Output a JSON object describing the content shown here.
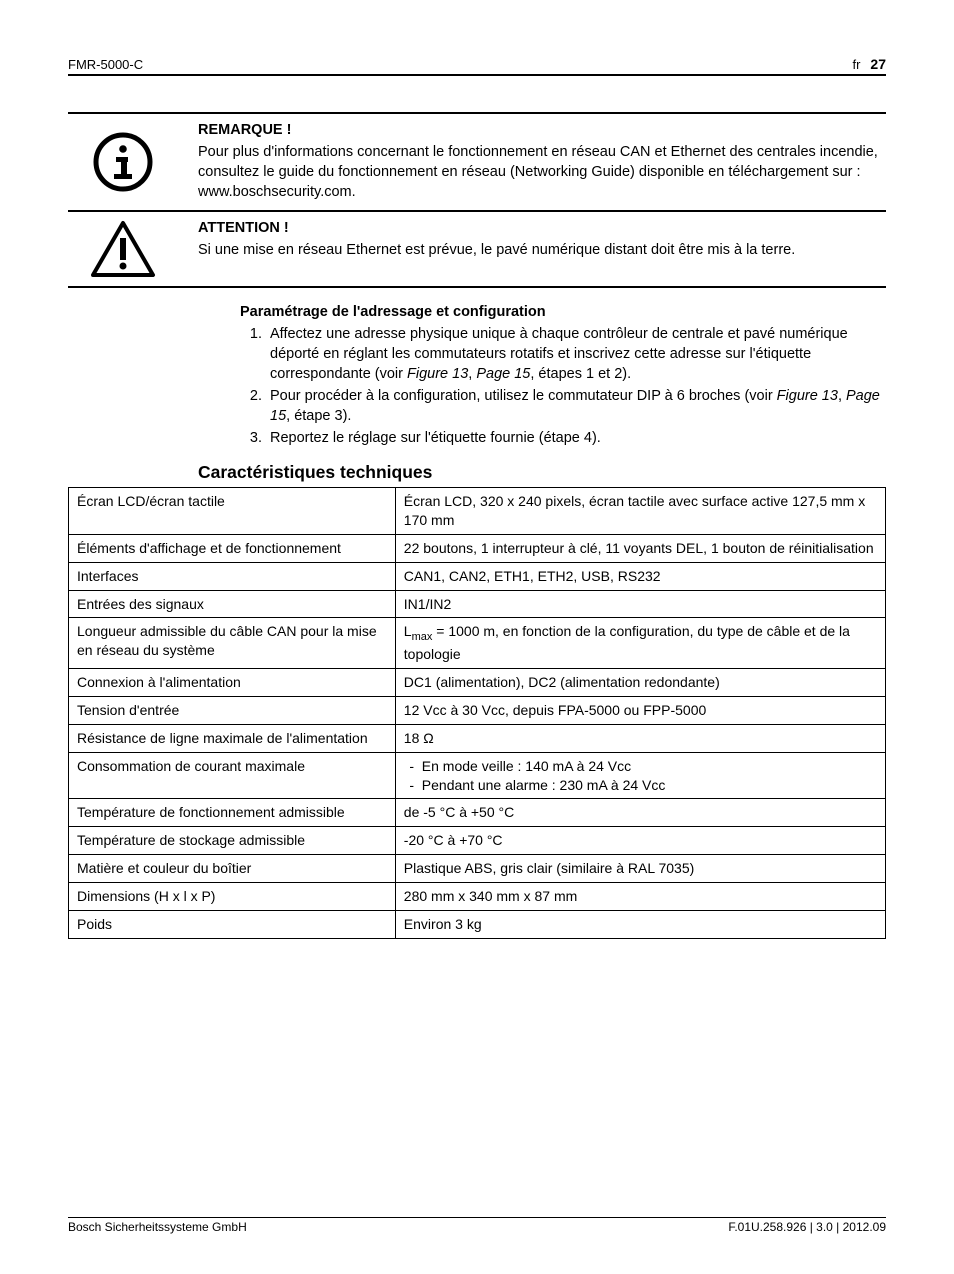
{
  "header": {
    "product": "FMR-5000-C",
    "lang": "fr",
    "page": "27"
  },
  "notice": {
    "title": "REMARQUE !",
    "body": "Pour plus d'informations concernant le fonctionnement en réseau CAN et Ethernet des centrales incendie, consultez le guide du fonctionnement en réseau (Networking Guide) disponible en téléchargement sur : www.boschsecurity.com."
  },
  "caution": {
    "title": "ATTENTION !",
    "body": "Si une mise en réseau Ethernet est prévue, le pavé numérique distant doit être mis à la terre."
  },
  "params": {
    "heading": "Paramétrage de l'adressage et configuration",
    "item1_pre": "Affectez une adresse physique unique à chaque contrôleur de centrale et pavé numérique déporté en réglant les commutateurs rotatifs et inscrivez cette adresse sur l'étiquette correspondante (voir ",
    "item1_ref1": "Figure 13",
    "item1_mid": ", ",
    "item1_ref2": "Page 15",
    "item1_post": ", étapes 1 et 2).",
    "item2_pre": "Pour procéder à la configuration, utilisez le commutateur DIP à 6 broches (voir ",
    "item2_ref1": "Figure 13",
    "item2_mid": ", ",
    "item2_ref2": "Page 15",
    "item2_post": ", étape 3).",
    "item3": "Reportez le réglage sur l'étiquette fournie (étape 4)."
  },
  "specs": {
    "heading": "Caractéristiques techniques",
    "rows": [
      {
        "k": "Écran LCD/écran tactile",
        "v": "Écran LCD, 320 x 240 pixels, écran tactile avec surface active 127,5 mm x 170 mm"
      },
      {
        "k": "Éléments d'affichage et de fonctionnement",
        "v": "22 boutons, 1 interrupteur à clé, 11 voyants DEL, 1 bouton de réinitialisation"
      },
      {
        "k": "Interfaces",
        "v": "CAN1, CAN2, ETH1, ETH2, USB, RS232"
      },
      {
        "k": "Entrées des signaux",
        "v": "IN1/IN2"
      },
      {
        "k": "Longueur admissible du câble CAN pour la mise en réseau du système",
        "v_lmax_pre": "L",
        "v_lmax_sub": "max",
        "v_lmax_post": " = 1000 m, en fonction de la configuration, du type de câble et de la topologie"
      },
      {
        "k": "Connexion à l'alimentation",
        "v": "DC1 (alimentation), DC2 (alimentation redondante)"
      },
      {
        "k": "Tension d'entrée",
        "v": "12 Vcc à 30 Vcc, depuis FPA-5000  ou FPP-5000"
      },
      {
        "k": "Résistance de ligne maximale de l'alimentation",
        "v": "18 Ω"
      },
      {
        "k": "Consommation de courant maximale",
        "v_list": [
          "En mode veille : 140 mA à 24 Vcc",
          "Pendant une alarme : 230 mA à 24 Vcc"
        ]
      },
      {
        "k": "Température de fonctionnement admissible",
        "v": "de -5 °C à +50 °C"
      },
      {
        "k": "Température de stockage admissible",
        "v": "-20 °C à +70 °C"
      },
      {
        "k": "Matière et couleur du boîtier",
        "v": "Plastique ABS, gris clair (similaire à RAL 7035)"
      },
      {
        "k": "Dimensions (H x l x P)",
        "v": "280 mm x 340 mm x 87 mm"
      },
      {
        "k": "Poids",
        "v": "Environ 3 kg"
      }
    ]
  },
  "footer": {
    "left": "Bosch Sicherheitssysteme GmbH",
    "right": "F.01U.258.926 | 3.0 | 2012.09"
  },
  "icons": {
    "info_stroke": "#000000",
    "warn_stroke": "#000000"
  }
}
